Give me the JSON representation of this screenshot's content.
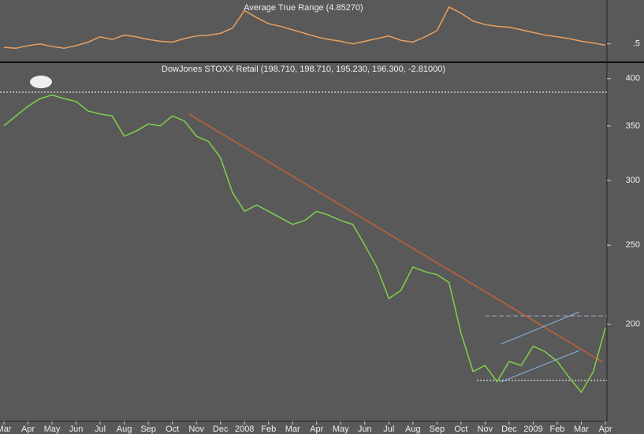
{
  "chart_data": [
    {
      "type": "line",
      "title": "Average True Range (4.85270)",
      "series": [
        {
          "name": "Average True Range",
          "color": "#e8a060",
          "values": [
            4.6,
            4.5,
            4.8,
            5.0,
            4.7,
            4.5,
            4.8,
            5.2,
            5.8,
            5.5,
            6.0,
            5.8,
            5.5,
            5.3,
            5.2,
            5.6,
            5.9,
            6.0,
            6.2,
            6.8,
            8.8,
            8.0,
            7.3,
            7.0,
            6.6,
            6.2,
            5.8,
            5.5,
            5.3,
            5.0,
            5.3,
            5.6,
            5.9,
            5.4,
            5.2,
            5.8,
            6.5,
            9.2,
            8.5,
            7.6,
            7.2,
            7.0,
            6.9,
            6.6,
            6.3,
            6.0,
            5.8,
            5.6,
            5.3,
            5.1,
            4.85
          ]
        }
      ],
      "ylim": [
        3,
        10
      ],
      "yticks": [
        {
          "value": 5,
          "label": ".5"
        }
      ]
    },
    {
      "type": "line",
      "title": "DowJones STOXX Retail (198.710, 198.710, 195.230, 196.300, -2.81000)",
      "categories": [
        "Mar",
        null,
        "Apr",
        null,
        "May",
        null,
        "Jun",
        null,
        "Jul",
        null,
        "Aug",
        null,
        "Sep",
        null,
        "Oct",
        null,
        "Nov",
        null,
        "Dec",
        null,
        "2008",
        null,
        "Feb",
        null,
        "Mar",
        null,
        "Apr",
        null,
        "May",
        null,
        "Jun",
        null,
        "Jul",
        null,
        "Aug",
        null,
        "Sep",
        null,
        "Oct",
        null,
        "Nov",
        null,
        "Dec",
        null,
        "2009",
        null,
        "Feb",
        null,
        "Mar",
        null,
        "Apr"
      ],
      "series": [
        {
          "name": "DowJones STOXX Retail",
          "color": "#7fd14a",
          "values": [
            350,
            360,
            370,
            378,
            382,
            378,
            375,
            365,
            362,
            360,
            340,
            345,
            352,
            350,
            360,
            355,
            340,
            335,
            320,
            290,
            275,
            280,
            275,
            270,
            265,
            268,
            275,
            272,
            268,
            265,
            250,
            235,
            215,
            220,
            235,
            232,
            230,
            225,
            195,
            175,
            178,
            170,
            180,
            178,
            188,
            185,
            180,
            172,
            165,
            175,
            198
          ]
        }
      ],
      "log_scale": true,
      "ylim": [
        152,
        418
      ],
      "yticks": [
        200,
        250,
        300,
        350,
        400
      ]
    }
  ]
}
